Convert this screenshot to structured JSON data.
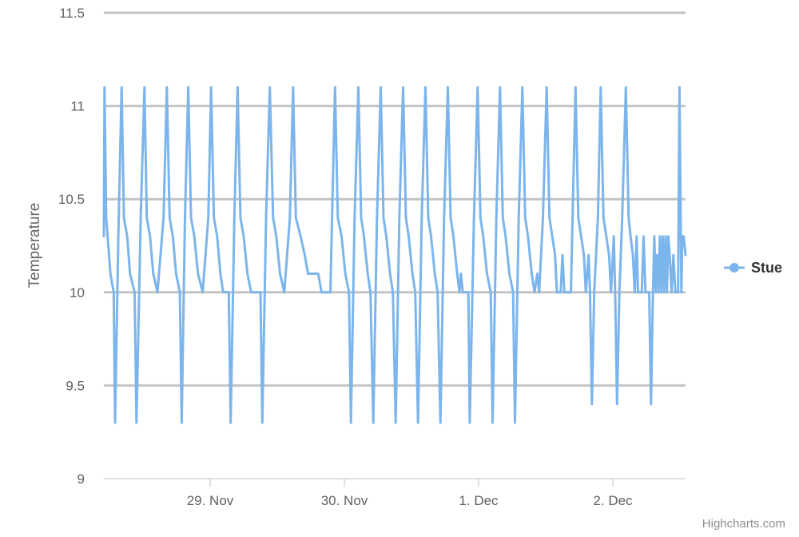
{
  "chart_data": {
    "type": "line",
    "title": "",
    "xlabel": "",
    "ylabel": "Temperature",
    "ylim": [
      9,
      11.5
    ],
    "yticks": [
      "9",
      "9.5",
      "10",
      "10.5",
      "11",
      "11.5"
    ],
    "yvalues": [
      9,
      9.5,
      10,
      10.5,
      11,
      11.5
    ],
    "xlim": [
      "2017-11-28T05:00",
      "2017-12-02T13:00"
    ],
    "xticks": [
      {
        "label": "29. Nov",
        "value": "2017-11-29T00:00"
      },
      {
        "label": "30. Nov",
        "value": "2017-11-30T00:00"
      },
      {
        "label": "1. Dec",
        "value": "2017-12-01T00:00"
      },
      {
        "label": "2. Dec",
        "value": "2017-12-02T00:00"
      }
    ],
    "grid": true,
    "legend": {
      "position": "right",
      "entries": [
        "Stue"
      ]
    },
    "credits": "Highcharts.com",
    "series": [
      {
        "name": "Stue",
        "color": "#7cb5ec",
        "points": [
          [
            "2017-11-28T05:00",
            10.3
          ],
          [
            "2017-11-28T05:07",
            11.1
          ],
          [
            "2017-11-28T05:25",
            10.4
          ],
          [
            "2017-11-28T05:40",
            10.3
          ],
          [
            "2017-11-28T06:10",
            10.1
          ],
          [
            "2017-11-28T06:45",
            10.0
          ],
          [
            "2017-11-28T07:00",
            9.3
          ],
          [
            "2017-11-28T07:35",
            10.3
          ],
          [
            "2017-11-28T08:10",
            11.1
          ],
          [
            "2017-11-28T08:35",
            10.4
          ],
          [
            "2017-11-28T09:10",
            10.3
          ],
          [
            "2017-11-28T09:40",
            10.1
          ],
          [
            "2017-11-28T10:30",
            10.0
          ],
          [
            "2017-11-28T10:50",
            9.3
          ],
          [
            "2017-11-28T11:35",
            10.4
          ],
          [
            "2017-11-28T12:15",
            11.1
          ],
          [
            "2017-11-28T12:40",
            10.4
          ],
          [
            "2017-11-28T13:15",
            10.3
          ],
          [
            "2017-11-28T13:50",
            10.1
          ],
          [
            "2017-11-28T14:35",
            10.0
          ],
          [
            "2017-11-28T15:40",
            10.4
          ],
          [
            "2017-11-28T16:15",
            11.1
          ],
          [
            "2017-11-28T16:45",
            10.4
          ],
          [
            "2017-11-28T17:20",
            10.3
          ],
          [
            "2017-11-28T17:55",
            10.1
          ],
          [
            "2017-11-28T18:35",
            10.0
          ],
          [
            "2017-11-28T18:55",
            9.3
          ],
          [
            "2017-11-28T19:30",
            10.4
          ],
          [
            "2017-11-28T20:05",
            11.1
          ],
          [
            "2017-11-28T20:35",
            10.4
          ],
          [
            "2017-11-28T21:10",
            10.3
          ],
          [
            "2017-11-28T21:50",
            10.1
          ],
          [
            "2017-11-28T22:40",
            10.0
          ],
          [
            "2017-11-28T23:40",
            10.4
          ],
          [
            "2017-11-29T00:10",
            11.1
          ],
          [
            "2017-11-29T00:40",
            10.4
          ],
          [
            "2017-11-29T01:15",
            10.3
          ],
          [
            "2017-11-29T01:50",
            10.1
          ],
          [
            "2017-11-29T02:20",
            10.0
          ],
          [
            "2017-11-29T03:20",
            10.0
          ],
          [
            "2017-11-29T03:40",
            9.3
          ],
          [
            "2017-11-29T04:20",
            10.4
          ],
          [
            "2017-11-29T04:55",
            11.1
          ],
          [
            "2017-11-29T05:25",
            10.4
          ],
          [
            "2017-11-29T06:00",
            10.3
          ],
          [
            "2017-11-29T06:40",
            10.1
          ],
          [
            "2017-11-29T07:20",
            10.0
          ],
          [
            "2017-11-29T09:00",
            10.0
          ],
          [
            "2017-11-29T09:20",
            9.3
          ],
          [
            "2017-11-29T10:00",
            10.4
          ],
          [
            "2017-11-29T10:40",
            11.1
          ],
          [
            "2017-11-29T11:15",
            10.4
          ],
          [
            "2017-11-29T11:50",
            10.3
          ],
          [
            "2017-11-29T12:30",
            10.1
          ],
          [
            "2017-11-29T13:15",
            10.0
          ],
          [
            "2017-11-29T14:15",
            10.4
          ],
          [
            "2017-11-29T14:50",
            11.1
          ],
          [
            "2017-11-29T15:20",
            10.4
          ],
          [
            "2017-11-29T16:10",
            10.3
          ],
          [
            "2017-11-29T16:55",
            10.2
          ],
          [
            "2017-11-29T17:30",
            10.1
          ],
          [
            "2017-11-29T19:20",
            10.1
          ],
          [
            "2017-11-29T19:55",
            10.0
          ],
          [
            "2017-11-29T21:30",
            10.0
          ],
          [
            "2017-11-29T22:20",
            11.1
          ],
          [
            "2017-11-29T22:50",
            10.4
          ],
          [
            "2017-11-29T23:30",
            10.3
          ],
          [
            "2017-11-30T00:10",
            10.1
          ],
          [
            "2017-11-30T00:50",
            10.0
          ],
          [
            "2017-11-30T01:10",
            9.3
          ],
          [
            "2017-11-30T01:50",
            10.4
          ],
          [
            "2017-11-30T02:30",
            11.1
          ],
          [
            "2017-11-30T03:00",
            10.4
          ],
          [
            "2017-11-30T03:30",
            10.3
          ],
          [
            "2017-11-30T04:10",
            10.1
          ],
          [
            "2017-11-30T04:40",
            10.0
          ],
          [
            "2017-11-30T05:10",
            9.3
          ],
          [
            "2017-11-30T05:50",
            10.4
          ],
          [
            "2017-11-30T06:30",
            11.1
          ],
          [
            "2017-11-30T07:00",
            10.4
          ],
          [
            "2017-11-30T07:30",
            10.3
          ],
          [
            "2017-11-30T08:10",
            10.1
          ],
          [
            "2017-11-30T08:40",
            10.0
          ],
          [
            "2017-11-30T09:10",
            9.3
          ],
          [
            "2017-11-30T09:50",
            10.4
          ],
          [
            "2017-11-30T10:30",
            11.1
          ],
          [
            "2017-11-30T11:00",
            10.4
          ],
          [
            "2017-11-30T11:30",
            10.3
          ],
          [
            "2017-11-30T12:10",
            10.1
          ],
          [
            "2017-11-30T12:40",
            10.0
          ],
          [
            "2017-11-30T13:10",
            9.3
          ],
          [
            "2017-11-30T13:50",
            10.4
          ],
          [
            "2017-11-30T14:30",
            11.1
          ],
          [
            "2017-11-30T15:00",
            10.4
          ],
          [
            "2017-11-30T15:30",
            10.3
          ],
          [
            "2017-11-30T16:10",
            10.1
          ],
          [
            "2017-11-30T16:40",
            10.0
          ],
          [
            "2017-11-30T17:10",
            9.3
          ],
          [
            "2017-11-30T17:50",
            10.4
          ],
          [
            "2017-11-30T18:30",
            11.1
          ],
          [
            "2017-11-30T19:00",
            10.4
          ],
          [
            "2017-11-30T19:30",
            10.3
          ],
          [
            "2017-11-30T20:10",
            10.1
          ],
          [
            "2017-11-30T20:35",
            10.0
          ],
          [
            "2017-11-30T20:50",
            10.1
          ],
          [
            "2017-11-30T21:10",
            10.0
          ],
          [
            "2017-11-30T22:10",
            10.0
          ],
          [
            "2017-11-30T22:25",
            9.3
          ],
          [
            "2017-11-30T23:10",
            10.4
          ],
          [
            "2017-11-30T23:50",
            11.1
          ],
          [
            "2017-12-01T00:20",
            10.4
          ],
          [
            "2017-12-01T00:50",
            10.3
          ],
          [
            "2017-12-01T01:30",
            10.1
          ],
          [
            "2017-12-01T02:10",
            10.0
          ],
          [
            "2017-12-01T02:30",
            9.3
          ],
          [
            "2017-12-01T03:10",
            10.4
          ],
          [
            "2017-12-01T03:50",
            11.1
          ],
          [
            "2017-12-01T04:20",
            10.4
          ],
          [
            "2017-12-01T04:50",
            10.3
          ],
          [
            "2017-12-01T05:30",
            10.1
          ],
          [
            "2017-12-01T06:10",
            10.0
          ],
          [
            "2017-12-01T06:30",
            9.3
          ],
          [
            "2017-12-01T07:10",
            10.4
          ],
          [
            "2017-12-01T07:50",
            11.1
          ],
          [
            "2017-12-01T08:20",
            10.4
          ],
          [
            "2017-12-01T08:50",
            10.3
          ],
          [
            "2017-12-01T09:30",
            10.1
          ],
          [
            "2017-12-01T10:00",
            10.0
          ],
          [
            "2017-12-01T10:30",
            10.1
          ],
          [
            "2017-12-01T10:50",
            10.0
          ],
          [
            "2017-12-01T11:30",
            10.4
          ],
          [
            "2017-12-01T12:10",
            11.1
          ],
          [
            "2017-12-01T12:40",
            10.4
          ],
          [
            "2017-12-01T13:10",
            10.3
          ],
          [
            "2017-12-01T13:40",
            10.2
          ],
          [
            "2017-12-01T14:00",
            10.0
          ],
          [
            "2017-12-01T14:40",
            10.0
          ],
          [
            "2017-12-01T15:00",
            10.2
          ],
          [
            "2017-12-01T15:20",
            10.0
          ],
          [
            "2017-12-01T16:30",
            10.0
          ],
          [
            "2017-12-01T17:20",
            11.1
          ],
          [
            "2017-12-01T17:50",
            10.4
          ],
          [
            "2017-12-01T18:20",
            10.3
          ],
          [
            "2017-12-01T18:50",
            10.2
          ],
          [
            "2017-12-01T19:10",
            10.0
          ],
          [
            "2017-12-01T19:40",
            10.2
          ],
          [
            "2017-12-01T19:55",
            10.0
          ],
          [
            "2017-12-01T20:15",
            9.4
          ],
          [
            "2017-12-01T20:40",
            10.0
          ],
          [
            "2017-12-01T21:20",
            10.4
          ],
          [
            "2017-12-01T21:50",
            11.1
          ],
          [
            "2017-12-01T22:20",
            10.4
          ],
          [
            "2017-12-01T22:50",
            10.3
          ],
          [
            "2017-12-01T23:20",
            10.2
          ],
          [
            "2017-12-01T23:40",
            10.0
          ],
          [
            "2017-12-02T00:10",
            10.3
          ],
          [
            "2017-12-02T00:25",
            10.0
          ],
          [
            "2017-12-02T00:45",
            9.4
          ],
          [
            "2017-12-02T01:10",
            10.0
          ],
          [
            "2017-12-02T01:40",
            10.4
          ],
          [
            "2017-12-02T02:20",
            11.1
          ],
          [
            "2017-12-02T02:50",
            10.4
          ],
          [
            "2017-12-02T03:10",
            10.3
          ],
          [
            "2017-12-02T03:35",
            10.2
          ],
          [
            "2017-12-02T03:55",
            10.0
          ],
          [
            "2017-12-02T04:15",
            10.3
          ],
          [
            "2017-12-02T04:30",
            10.0
          ],
          [
            "2017-12-02T05:10",
            10.0
          ],
          [
            "2017-12-02T05:30",
            10.3
          ],
          [
            "2017-12-02T05:50",
            10.0
          ],
          [
            "2017-12-02T06:30",
            10.0
          ],
          [
            "2017-12-02T06:50",
            9.4
          ],
          [
            "2017-12-02T07:10",
            10.0
          ],
          [
            "2017-12-02T07:25",
            10.3
          ],
          [
            "2017-12-02T07:40",
            10.0
          ],
          [
            "2017-12-02T07:55",
            10.2
          ],
          [
            "2017-12-02T08:10",
            10.0
          ],
          [
            "2017-12-02T08:25",
            10.3
          ],
          [
            "2017-12-02T08:40",
            10.0
          ],
          [
            "2017-12-02T08:55",
            10.3
          ],
          [
            "2017-12-02T09:10",
            10.0
          ],
          [
            "2017-12-02T09:25",
            10.3
          ],
          [
            "2017-12-02T09:40",
            10.0
          ],
          [
            "2017-12-02T09:55",
            10.3
          ],
          [
            "2017-12-02T10:10",
            10.2
          ],
          [
            "2017-12-02T10:30",
            10.0
          ],
          [
            "2017-12-02T10:50",
            10.2
          ],
          [
            "2017-12-02T11:10",
            10.0
          ],
          [
            "2017-12-02T11:40",
            10.0
          ],
          [
            "2017-12-02T11:55",
            11.1
          ],
          [
            "2017-12-02T12:15",
            10.0
          ],
          [
            "2017-12-02T12:25",
            10.3
          ],
          [
            "2017-12-02T12:40",
            10.3
          ],
          [
            "2017-12-02T13:00",
            10.2
          ]
        ]
      }
    ]
  }
}
